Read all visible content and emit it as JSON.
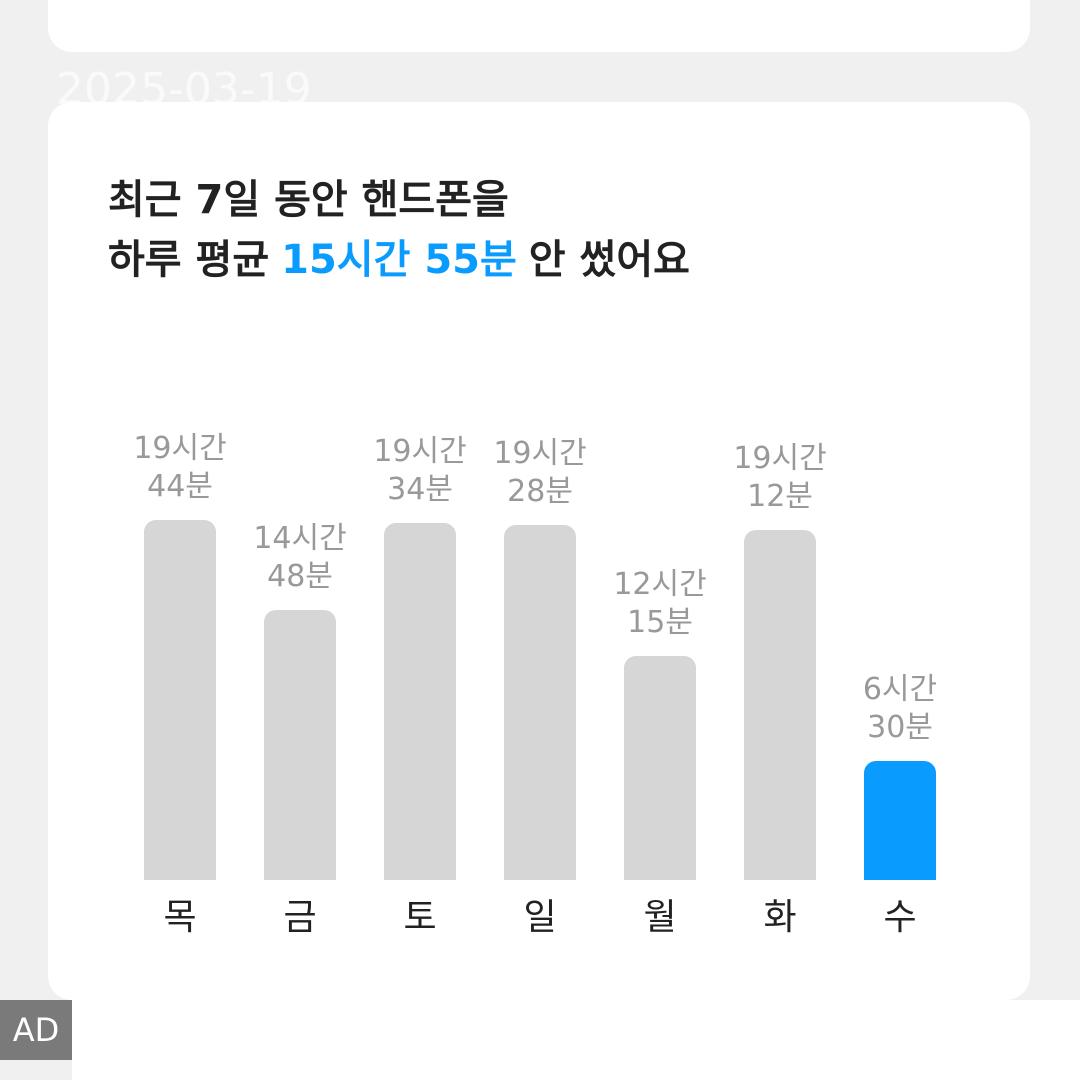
{
  "date": "2025-03-19",
  "ad_label": "AD",
  "chart_data": {
    "type": "bar",
    "title": [
      "최근 7일 동안 핸드폰을",
      "하루 평균",
      "15시간 55분",
      "안 썼어요"
    ],
    "categories": [
      "목",
      "금",
      "토",
      "일",
      "월",
      "화",
      "수"
    ],
    "values": [
      1184,
      888,
      1174,
      1168,
      735,
      1152,
      390
    ],
    "value_labels": [
      "19시간 44분",
      "14시간 48분",
      "19시간 34분",
      "19시간 28분",
      "12시간 15분",
      "19시간 12분",
      "6시간 30분"
    ],
    "colors": [
      "#d6d6d6",
      "#d6d6d6",
      "#d6d6d6",
      "#d6d6d6",
      "#d6d6d6",
      "#d6d6d6",
      "#0a9bff"
    ],
    "highlight_color": "#0a9bff",
    "ylim": [
      0,
      1440
    ]
  }
}
